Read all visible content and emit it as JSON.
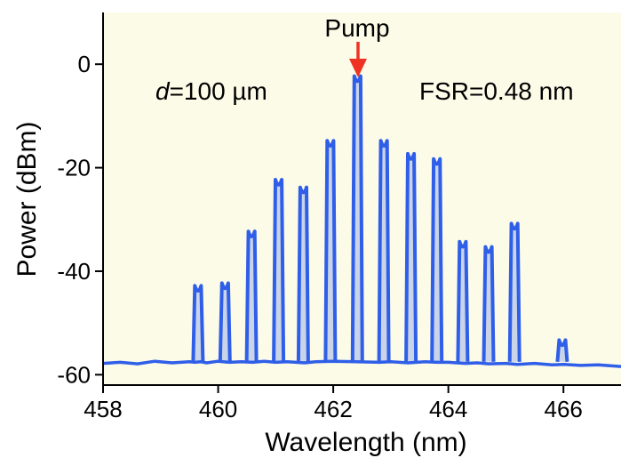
{
  "chart_data": {
    "type": "line",
    "title": "",
    "xlabel": "Wavelength (nm)",
    "ylabel": "Power (dBm)",
    "xlim": [
      458,
      467
    ],
    "ylim": [
      -62,
      10
    ],
    "x_ticks": [
      458,
      460,
      462,
      464,
      466
    ],
    "y_ticks": [
      0,
      -20,
      -40,
      -60
    ],
    "grid": false,
    "colors": {
      "plot_background": "#fcfbe8",
      "series": "#2f5ee8",
      "pump_arrow": "#ee3322"
    },
    "annotations": {
      "pump_label": "Pump",
      "thickness_italic": "d",
      "thickness_rest": "=100 µm",
      "fsr": "FSR=0.48 nm"
    },
    "noise_floor_dBm": -57.5,
    "comb_lines": [
      {
        "wavelength": 459.65,
        "power": -44
      },
      {
        "wavelength": 460.12,
        "power": -43.5
      },
      {
        "wavelength": 460.58,
        "power": -33.5
      },
      {
        "wavelength": 461.05,
        "power": -23.5
      },
      {
        "wavelength": 461.48,
        "power": -25
      },
      {
        "wavelength": 461.95,
        "power": -16
      },
      {
        "wavelength": 462.42,
        "power": -3.5
      },
      {
        "wavelength": 462.88,
        "power": -16
      },
      {
        "wavelength": 463.35,
        "power": -18.5
      },
      {
        "wavelength": 463.8,
        "power": -19.5
      },
      {
        "wavelength": 464.25,
        "power": -35.5
      },
      {
        "wavelength": 464.7,
        "power": -36.5
      },
      {
        "wavelength": 465.15,
        "power": -32
      },
      {
        "wavelength": 465.98,
        "power": -54.5
      }
    ],
    "series": [
      {
        "x": [
          458.0,
          458.3,
          458.6,
          458.9,
          459.2,
          459.5,
          459.6,
          459.7,
          459.8,
          460.0,
          460.2,
          460.4,
          460.6,
          460.8,
          461.0,
          461.2,
          461.5,
          461.7,
          462.0,
          462.4,
          462.8,
          463.0,
          463.3,
          463.6,
          463.8,
          464.0,
          464.3,
          464.5,
          464.7,
          465.0,
          465.2,
          465.5,
          465.8,
          466.0,
          466.3,
          466.6,
          467.0
        ],
        "y": [
          -57.8,
          -57.6,
          -57.9,
          -57.4,
          -57.7,
          -57.5,
          -57.6,
          -57.5,
          -57.7,
          -57.4,
          -57.6,
          -57.5,
          -57.6,
          -57.4,
          -57.6,
          -57.5,
          -57.7,
          -57.5,
          -57.4,
          -57.5,
          -57.6,
          -57.5,
          -57.7,
          -57.5,
          -57.6,
          -57.6,
          -57.8,
          -57.7,
          -57.9,
          -57.8,
          -58.0,
          -57.8,
          -58.1,
          -58.0,
          -58.2,
          -58.1,
          -58.4
        ]
      }
    ]
  }
}
